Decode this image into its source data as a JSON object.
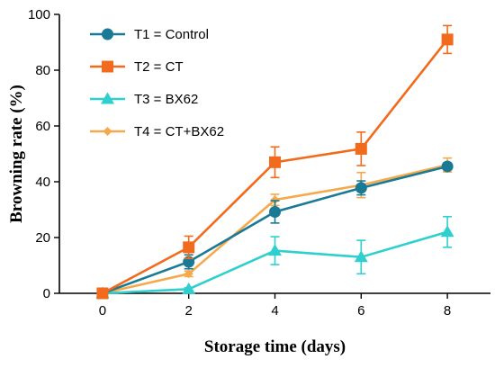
{
  "chart_data": {
    "type": "line",
    "title": "",
    "xlabel": "Storage time (days)",
    "ylabel": "Browning rate (%)",
    "x": [
      0,
      2,
      4,
      6,
      8
    ],
    "x_ticks": [
      0,
      2,
      4,
      6,
      8
    ],
    "y_ticks": [
      0,
      20,
      40,
      60,
      80,
      100
    ],
    "xlim": [
      -1,
      9
    ],
    "ylim": [
      0,
      100
    ],
    "grid": false,
    "legend_position": "top-left",
    "series": [
      {
        "name": "T1 = Control",
        "color": "#1a7a96",
        "marker": "circle",
        "values": [
          0,
          11.3,
          29.2,
          37.8,
          45.5
        ],
        "errors": [
          0,
          2.5,
          4.0,
          2.5,
          1.2
        ]
      },
      {
        "name": "T2 = CT",
        "color": "#f26b1d",
        "marker": "square",
        "values": [
          0,
          16.5,
          47.0,
          51.8,
          91.0
        ],
        "errors": [
          0,
          4.0,
          5.5,
          6.0,
          5.0
        ]
      },
      {
        "name": "T3 = BX62",
        "color": "#2fcfcf",
        "marker": "triangle",
        "values": [
          0,
          1.5,
          15.3,
          13.0,
          22.0
        ],
        "errors": [
          0,
          0.5,
          5.0,
          6.0,
          5.5
        ]
      },
      {
        "name": "T4 = CT+BX62",
        "color": "#f5a94a",
        "marker": "diamond",
        "values": [
          0,
          7.0,
          33.5,
          38.8,
          46.0
        ],
        "errors": [
          0,
          1.0,
          2.0,
          4.5,
          2.5
        ]
      }
    ]
  }
}
